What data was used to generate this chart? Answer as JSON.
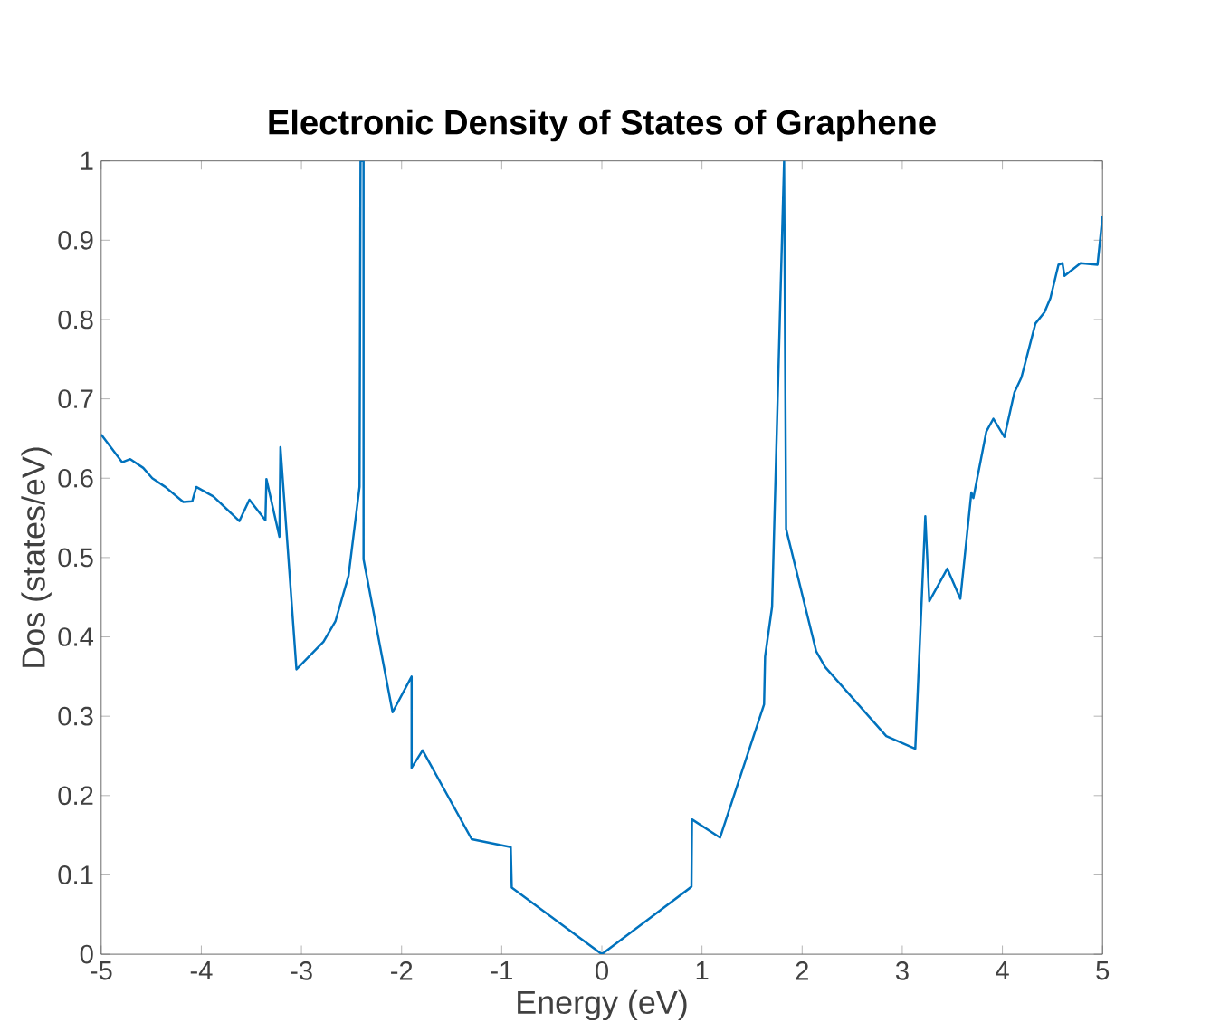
{
  "chart_data": {
    "type": "line",
    "title": "Electronic Density of States of Graphene",
    "xlabel": "Energy (eV)",
    "ylabel": "Dos (states/eV)",
    "xlim": [
      -5,
      5
    ],
    "ylim": [
      0,
      1
    ],
    "xticks": [
      -5,
      -4,
      -3,
      -2,
      -1,
      0,
      1,
      2,
      3,
      4,
      5
    ],
    "yticks": [
      0,
      0.1,
      0.2,
      0.3,
      0.4,
      0.5,
      0.6,
      0.7,
      0.8,
      0.9,
      1
    ],
    "grid": false,
    "series": [
      {
        "color": "#0072bd",
        "x": [
          -5,
          -4.79,
          -4.71,
          -4.58,
          -4.49,
          -4.36,
          -4.18,
          -4.09,
          -4.05,
          -3.88,
          -3.62,
          -3.52,
          -3.36,
          -3.35,
          -3.22,
          -3.21,
          -3.05,
          -2.78,
          -2.66,
          -2.53,
          -2.42,
          -2.41,
          -2.38,
          -2.38,
          -2.09,
          -1.9,
          -1.9,
          -1.79,
          -1.3,
          -0.91,
          -0.9,
          0,
          0.895,
          0.9,
          1.18,
          1.62,
          1.63,
          1.7,
          1.82,
          1.84,
          2.14,
          2.23,
          2.84,
          3.13,
          3.23,
          3.27,
          3.45,
          3.58,
          3.69,
          3.71,
          3.84,
          3.91,
          4.02,
          4.12,
          4.19,
          4.33,
          4.42,
          4.48,
          4.56,
          4.6,
          4.62,
          4.78,
          4.95,
          5
        ],
        "values": [
          0.655,
          0.62,
          0.624,
          0.613,
          0.6,
          0.589,
          0.57,
          0.571,
          0.589,
          0.577,
          0.546,
          0.573,
          0.547,
          0.599,
          0.526,
          0.639,
          0.359,
          0.394,
          0.42,
          0.477,
          0.589,
          1,
          1,
          0.498,
          0.305,
          0.35,
          0.235,
          0.257,
          0.145,
          0.135,
          0.084,
          0,
          0.085,
          0.17,
          0.147,
          0.315,
          0.375,
          0.438,
          1,
          0.536,
          0.382,
          0.362,
          0.275,
          0.259,
          0.552,
          0.445,
          0.486,
          0.448,
          0.582,
          0.575,
          0.659,
          0.675,
          0.652,
          0.708,
          0.727,
          0.795,
          0.809,
          0.827,
          0.869,
          0.871,
          0.855,
          0.871,
          0.869,
          0.93
        ]
      }
    ]
  }
}
